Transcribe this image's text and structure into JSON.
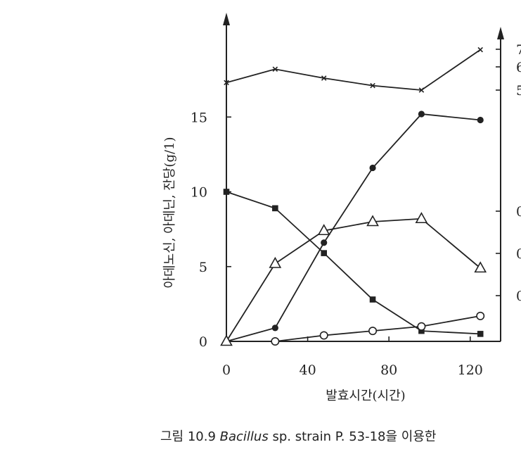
{
  "chart_data": {
    "type": "line",
    "xlabel": "발효시간(시간)",
    "ylabel": "아데노신, 아데닌, 잔당(g/1)",
    "x_ticks": [
      "0",
      "40",
      "80",
      "120"
    ],
    "y_ticks": [
      "0",
      "5",
      "10",
      "15"
    ],
    "right_ticks_partial": [
      "7",
      "6",
      "5",
      "0",
      "0",
      "0"
    ],
    "xlim": [
      0,
      136
    ],
    "ylim": [
      0,
      20
    ],
    "grid": false,
    "legend": "none",
    "series": [
      {
        "marker": "x",
        "points": [
          [
            0,
            17.3
          ],
          [
            24,
            18.2
          ],
          [
            48,
            17.6
          ],
          [
            72,
            17.1
          ],
          [
            96,
            16.8
          ],
          [
            125,
            19.5
          ]
        ]
      },
      {
        "marker": "filled-circle",
        "points": [
          [
            0,
            0
          ],
          [
            24,
            0.9
          ],
          [
            48,
            6.6
          ],
          [
            72,
            11.6
          ],
          [
            96,
            15.2
          ],
          [
            125,
            14.8
          ]
        ]
      },
      {
        "marker": "open-triangle",
        "points": [
          [
            0,
            0
          ],
          [
            24,
            5.2
          ],
          [
            48,
            7.4
          ],
          [
            72,
            8.0
          ],
          [
            96,
            8.2
          ],
          [
            125,
            4.9
          ]
        ]
      },
      {
        "marker": "filled-square",
        "points": [
          [
            0,
            10.0
          ],
          [
            24,
            8.9
          ],
          [
            48,
            5.9
          ],
          [
            72,
            2.8
          ],
          [
            96,
            0.7
          ],
          [
            125,
            0.5
          ]
        ]
      },
      {
        "marker": "open-circle",
        "points": [
          [
            24,
            0
          ],
          [
            48,
            0.4
          ],
          [
            72,
            0.7
          ],
          [
            96,
            1.0
          ],
          [
            125,
            1.7
          ]
        ]
      }
    ]
  },
  "caption": {
    "prefix": "그림  10.9 ",
    "organism": "Bacillus",
    "suffix": " sp.  strain  P.  53-18을  이용한"
  }
}
